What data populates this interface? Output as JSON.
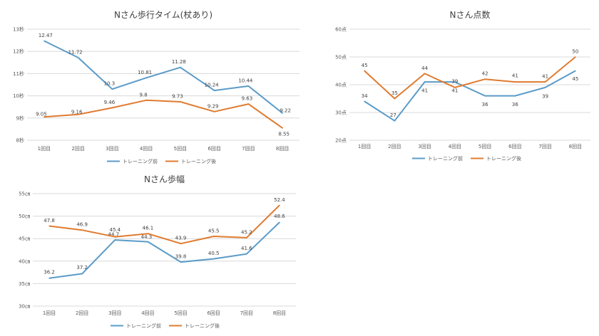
{
  "colors": {
    "before": "#5b9bc8",
    "after": "#e07b30",
    "grid": "#d9d9d9",
    "text": "#404040"
  },
  "chart_data": [
    {
      "type": "line",
      "title": "Nさん歩行タイム(杖あり)",
      "categories": [
        "1回目",
        "2回目",
        "3回目",
        "4回目",
        "5回目",
        "6回目",
        "7回目",
        "8回目"
      ],
      "y_ticks": [
        "8秒",
        "9秒",
        "10秒",
        "11秒",
        "12秒",
        "13秒"
      ],
      "ylim": [
        8,
        13
      ],
      "grid": true,
      "legend_position": "bottom",
      "series": [
        {
          "name": "トレーニング前",
          "values": [
            12.47,
            11.72,
            10.3,
            10.81,
            11.28,
            10.24,
            10.44,
            9.22
          ],
          "labels": [
            "12.47",
            "11.72",
            "10.3",
            "10.81",
            "11.28",
            "10.24",
            "10.44",
            "9.22"
          ]
        },
        {
          "name": "トレーニング後",
          "values": [
            9.05,
            9.16,
            9.46,
            9.8,
            9.73,
            9.29,
            9.63,
            8.55
          ],
          "labels": [
            "9.05",
            "9.16",
            "9.46",
            "9.8",
            "9.73",
            "9.29",
            "9.63",
            "8.55"
          ]
        }
      ]
    },
    {
      "type": "line",
      "title": "Nさん点数",
      "categories": [
        "1回目",
        "2回目",
        "3回目",
        "4回目",
        "5回目",
        "6回目",
        "7回目",
        "8回目"
      ],
      "y_ticks": [
        "20点",
        "30点",
        "40点",
        "50点",
        "60点"
      ],
      "ylim": [
        20,
        60
      ],
      "grid": true,
      "legend_position": "bottom",
      "series": [
        {
          "name": "トレーニング前",
          "values": [
            34,
            27,
            41,
            41,
            36,
            36,
            39,
            45
          ],
          "labels": [
            "34",
            "27",
            "41",
            "41",
            "36",
            "36",
            "39",
            "45"
          ]
        },
        {
          "name": "トレーニング後",
          "values": [
            45,
            35,
            44,
            39,
            42,
            41,
            41,
            50
          ],
          "labels": [
            "45",
            "35",
            "44",
            "39",
            "42",
            "41",
            "41",
            "50"
          ]
        }
      ]
    },
    {
      "type": "line",
      "title": "Nさん歩幅",
      "categories": [
        "1回目",
        "2回目",
        "3回目",
        "4回目",
        "5回目",
        "6回目",
        "7回目",
        "8回目"
      ],
      "y_ticks": [
        "30㎝",
        "35㎝",
        "40㎝",
        "45㎝",
        "50㎝",
        "55㎝"
      ],
      "ylim": [
        30,
        55
      ],
      "grid": true,
      "legend_position": "bottom",
      "series": [
        {
          "name": "トレーニング前",
          "values": [
            36.2,
            37.2,
            44.7,
            44.3,
            39.8,
            40.5,
            41.6,
            48.6
          ],
          "labels": [
            "36.2",
            "37.2",
            "44.7",
            "44.3",
            "39.8",
            "40.5",
            "41.6",
            "48.6"
          ]
        },
        {
          "name": "トレーニング後",
          "values": [
            47.8,
            46.9,
            45.4,
            46.1,
            43.9,
            45.5,
            45.2,
            52.4
          ],
          "labels": [
            "47.8",
            "46.9",
            "45.4",
            "46.1",
            "43.9",
            "45.5",
            "45.2",
            "52.4"
          ]
        }
      ]
    }
  ]
}
